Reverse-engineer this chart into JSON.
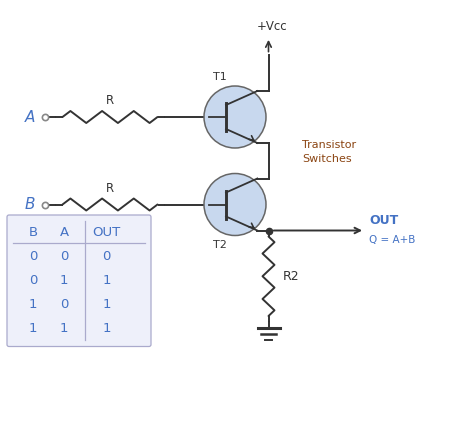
{
  "bg_color": "#ffffff",
  "line_color": "#333333",
  "blue_color": "#4472c4",
  "brown_color": "#8B4513",
  "transistor_fill": "#c8d8ee",
  "transistor_stroke": "#666666",
  "vcc_label": "+Vcc",
  "t1_label": "T1",
  "t2_label": "T2",
  "r1_label": "R",
  "r2_label": "R",
  "r_bottom_label": "R2",
  "a_label": "A",
  "b_label": "B",
  "out_label": "OUT",
  "eq_label": "Q = A+B",
  "transistor_label": "Transistor\nSwitches",
  "truth_table": {
    "headers": [
      "B",
      "A",
      "OUT"
    ],
    "rows": [
      [
        0,
        0,
        0
      ],
      [
        0,
        1,
        1
      ],
      [
        1,
        0,
        1
      ],
      [
        1,
        1,
        1
      ]
    ]
  },
  "xlim": [
    0,
    9
  ],
  "ylim": [
    0,
    8.44
  ],
  "figsize": [
    4.5,
    4.22
  ],
  "dpi": 100
}
